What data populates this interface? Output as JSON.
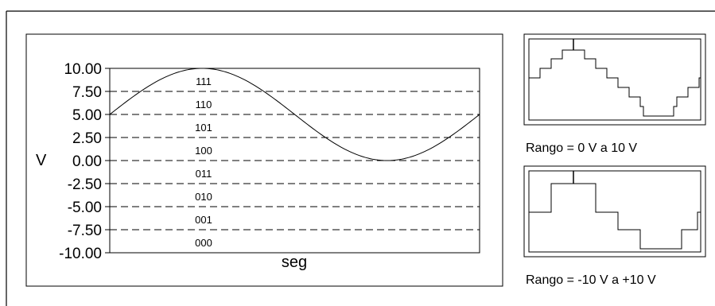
{
  "main_plot": {
    "y_axis_label": "V",
    "x_axis_label": "seg",
    "ylim": [
      -10,
      10
    ],
    "y_ticks": [
      "10.00",
      "7.50",
      "5.00",
      "2.50",
      "0.00",
      "-2.50",
      "-5.00",
      "-7.50",
      "-10.00"
    ],
    "codes": [
      "111",
      "110",
      "101",
      "100",
      "011",
      "010",
      "001",
      "000"
    ],
    "signal": {
      "type": "sine",
      "amplitude": 5,
      "offset": 5,
      "phase_start": 0
    }
  },
  "panel_small_range": {
    "caption": "Rango = 0 V a 10 V",
    "levels": 8
  },
  "panel_full_range": {
    "caption": "Rango = -10 V a +10 V",
    "levels": 4
  }
}
